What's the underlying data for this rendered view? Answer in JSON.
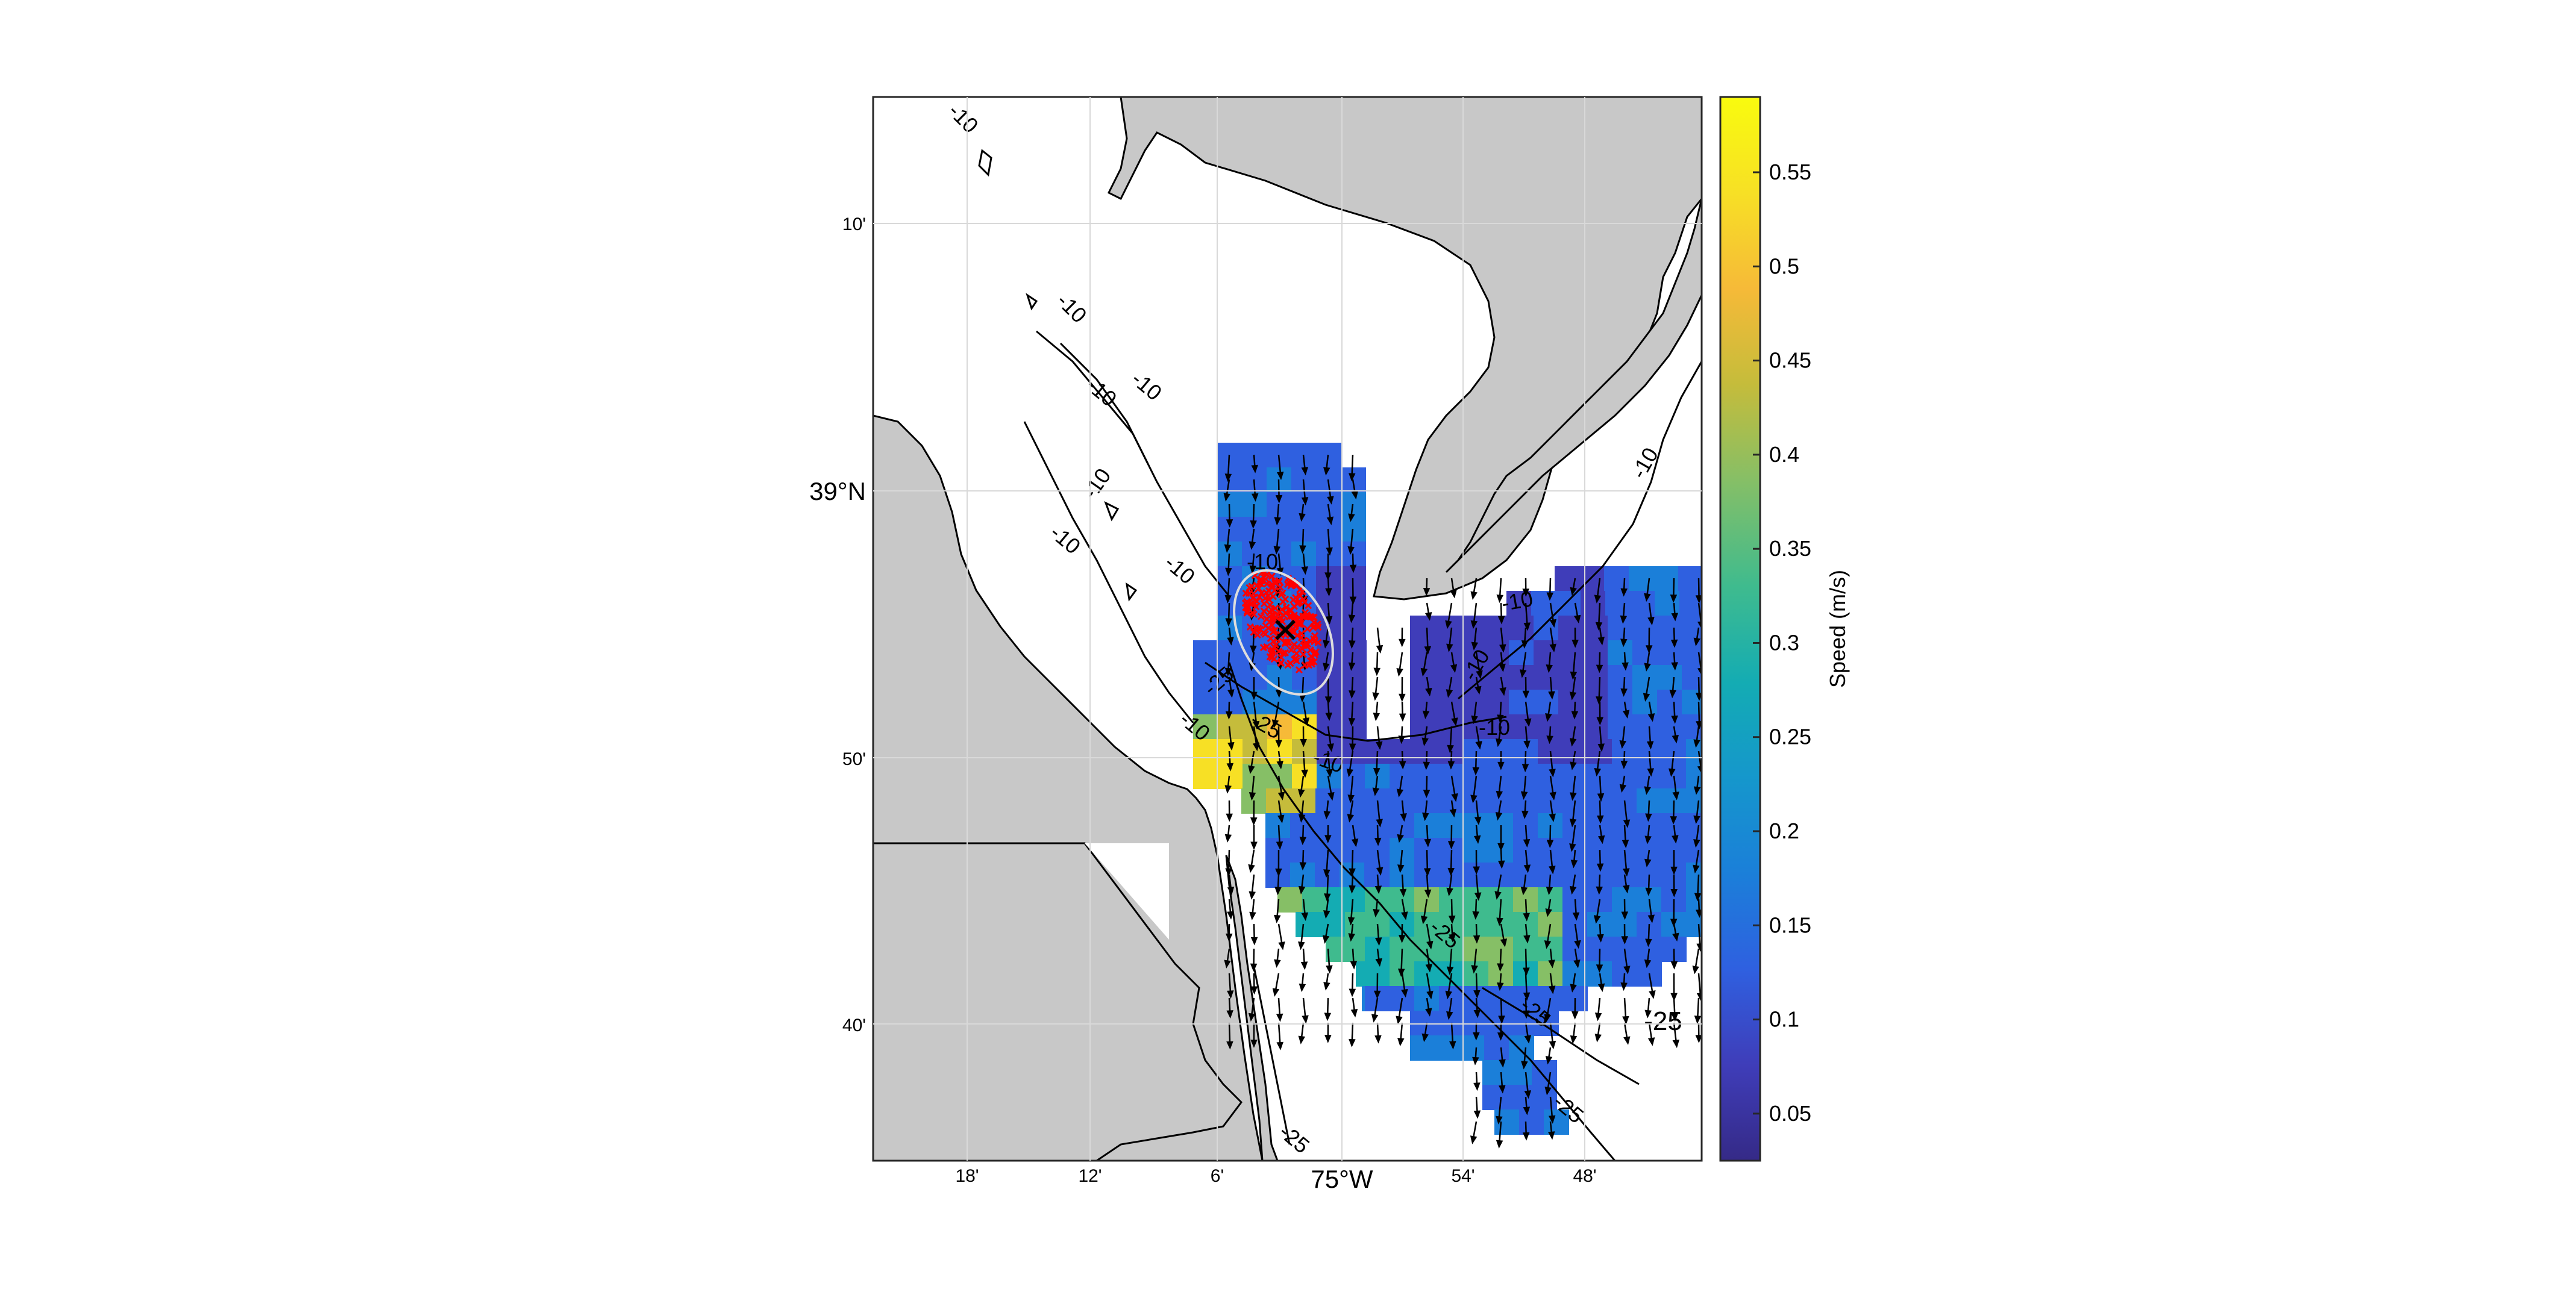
{
  "map": {
    "lat_ticks": [
      "10'",
      "39°N",
      "50'",
      "40'"
    ],
    "lon_ticks": [
      "18'",
      "12'",
      "6'",
      "75°W",
      "54'",
      "48'"
    ],
    "contour_labels": [
      "-10",
      "-10",
      "-10",
      "-10",
      "-10",
      "-10",
      "-10",
      "-10",
      "-10",
      "-10",
      "-10",
      "-10",
      "-10",
      "-10",
      "-25",
      "-25",
      "-25",
      "-25",
      "-25",
      "-25",
      "-25"
    ],
    "marker_symbol": "✕",
    "colors": {
      "land": "#c8c8c8",
      "water": "#ffffff",
      "grid": "#e6e6e6",
      "coast": "#000000",
      "particles": "#ff0000",
      "ellipse": "#dddddd",
      "colormap": [
        "#352a87",
        "#3f3db9",
        "#2f60e0",
        "#1b7fd9",
        "#1597cc",
        "#14acb3",
        "#3fbb8e",
        "#86bf66",
        "#c5bc3b",
        "#f6ba38",
        "#f7e025",
        "#f9fb0e"
      ]
    }
  },
  "colorbar": {
    "label": "Speed (m/s)",
    "ticks": [
      "0.55",
      "0.5",
      "0.45",
      "0.4",
      "0.35",
      "0.3",
      "0.25",
      "0.2",
      "0.15",
      "0.1",
      "0.05"
    ],
    "tick_values": [
      0.55,
      0.5,
      0.45,
      0.4,
      0.35,
      0.3,
      0.25,
      0.2,
      0.15,
      0.1,
      0.05
    ],
    "range": [
      0.025,
      0.59
    ]
  }
}
